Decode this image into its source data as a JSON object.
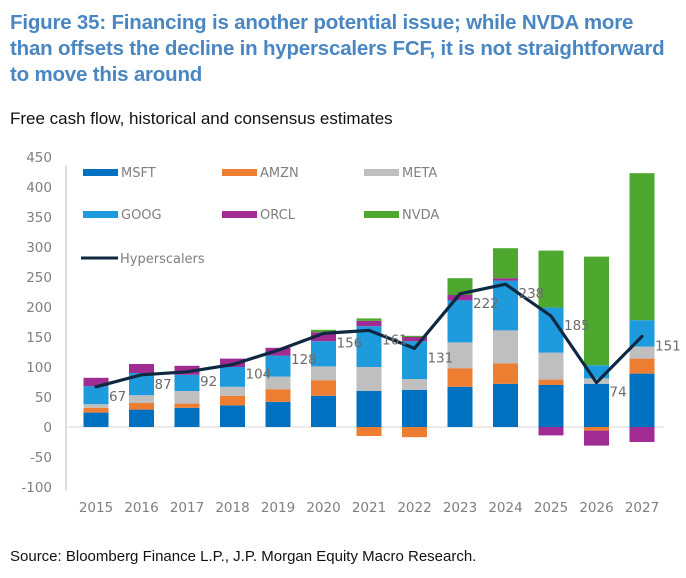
{
  "header": {
    "title": "Figure 35: Financing is another potential issue; while NVDA more than offsets the decline in hyperscalers FCF, it is not straightforward to move this around",
    "subtitle": "Free cash flow, historical and consensus estimates"
  },
  "footer": {
    "source": "Source: Bloomberg Finance L.P., J.P. Morgan Equity Macro Research."
  },
  "chart_data": {
    "type": "bar",
    "stacked": true,
    "title": "Free cash flow, historical and consensus estimates",
    "xlabel": "",
    "ylabel": "",
    "ylim": [
      -100,
      450
    ],
    "yticks": [
      -100,
      -50,
      0,
      50,
      100,
      150,
      200,
      250,
      300,
      350,
      400,
      450
    ],
    "ytick_labels": [
      "-100",
      "-50",
      "0",
      "50",
      "100",
      "150",
      "200",
      "250",
      "300",
      "350",
      "400",
      "450"
    ],
    "categories": [
      "2015",
      "2016",
      "2017",
      "2018",
      "2019",
      "2020",
      "2021",
      "2022",
      "2023",
      "2024",
      "2025",
      "2026",
      "2027"
    ],
    "grid": false,
    "legend_position": "top-left",
    "series": [
      {
        "name": "MSFT",
        "color": "#0070c0",
        "values": [
          24,
          29,
          32,
          36,
          42,
          52,
          60,
          62,
          67,
          72,
          70,
          72,
          89
        ]
      },
      {
        "name": "AMZN",
        "color": "#ed7d31",
        "values": [
          8,
          11,
          7,
          16,
          21,
          26,
          -15,
          -17,
          31,
          34,
          9,
          -6,
          25
        ]
      },
      {
        "name": "META",
        "color": "#bfbfbf",
        "values": [
          6,
          13,
          21,
          15,
          21,
          23,
          40,
          18,
          43,
          55,
          45,
          9,
          20
        ]
      },
      {
        "name": "GOOG",
        "color": "#1e9bdc",
        "values": [
          30,
          37,
          27,
          33,
          35,
          42,
          68,
          63,
          70,
          83,
          75,
          22,
          44
        ]
      },
      {
        "name": "ORCL",
        "color": "#a02b93",
        "values": [
          14,
          15,
          15,
          14,
          13,
          15,
          9,
          7,
          9,
          4,
          -14,
          -25,
          -25
        ]
      },
      {
        "name": "NVDA",
        "color": "#4ea72e",
        "values": [
          0,
          0,
          0,
          0,
          0,
          4,
          4,
          2,
          28,
          50,
          95,
          181,
          245
        ]
      }
    ],
    "line_series": {
      "name": "Hyperscalers",
      "color": "#0e2841",
      "values": [
        67,
        87,
        92,
        104,
        128,
        156,
        161,
        131,
        222,
        238,
        185,
        74,
        151
      ],
      "labels": [
        "67",
        "87",
        "92",
        "104",
        "128",
        "156",
        "161",
        "131",
        "222",
        "238",
        "185",
        "74",
        "151"
      ]
    }
  }
}
